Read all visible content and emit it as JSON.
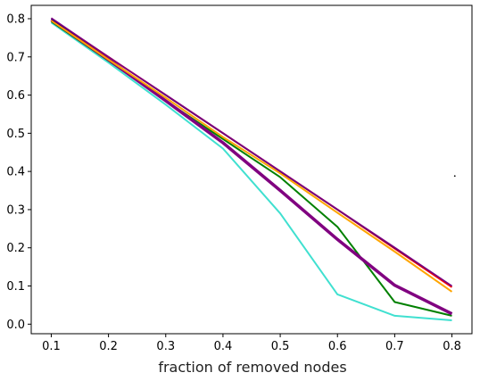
{
  "chart_data": {
    "type": "line",
    "title": "",
    "xlabel": "fraction of removed nodes",
    "ylabel": "",
    "xlim": [
      0.065,
      0.835
    ],
    "ylim": [
      -0.025,
      0.835
    ],
    "grid": false,
    "legend": "none",
    "x_ticks": [
      0.1,
      0.2,
      0.3,
      0.4,
      0.5,
      0.6,
      0.7,
      0.8
    ],
    "x_tick_labels": [
      "0.1",
      "0.2",
      "0.3",
      "0.4",
      "0.5",
      "0.6",
      "0.7",
      "0.8"
    ],
    "y_ticks": [
      0.0,
      0.1,
      0.2,
      0.3,
      0.4,
      0.5,
      0.6,
      0.7,
      0.8
    ],
    "y_tick_labels": [
      "0.0",
      "0.1",
      "0.2",
      "0.3",
      "0.4",
      "0.5",
      "0.6",
      "0.7",
      "0.8"
    ],
    "x": [
      0.1,
      0.2,
      0.3,
      0.4,
      0.5,
      0.6,
      0.7,
      0.8
    ],
    "series": [
      {
        "color": "#40E0D0",
        "width": 2,
        "values": [
          0.79,
          0.685,
          0.575,
          0.46,
          0.29,
          0.078,
          0.022,
          0.01
        ]
      },
      {
        "color": "#008000",
        "width": 2,
        "values": [
          0.793,
          0.69,
          0.585,
          0.485,
          0.385,
          0.255,
          0.058,
          0.022
        ]
      },
      {
        "color": "#800080",
        "width": 3.5,
        "values": [
          0.797,
          0.693,
          0.585,
          0.475,
          0.35,
          0.222,
          0.102,
          0.027
        ]
      },
      {
        "color": "#FFA500",
        "width": 2,
        "values": [
          0.795,
          0.693,
          0.593,
          0.49,
          0.395,
          0.292,
          0.19,
          0.085
        ]
      },
      {
        "color": "#FF0000",
        "width": 2,
        "values": [
          0.8,
          0.7,
          0.6,
          0.5,
          0.4,
          0.3,
          0.198,
          0.097
        ]
      },
      {
        "color": "#00008B",
        "width": 1.5,
        "values": [
          0.8,
          0.7,
          0.6,
          0.5,
          0.4,
          0.3,
          0.2,
          0.1
        ]
      },
      {
        "color": "#800080",
        "width": 1.5,
        "values": [
          0.802,
          0.7,
          0.601,
          0.501,
          0.401,
          0.301,
          0.201,
          0.1
        ]
      }
    ],
    "markers": [
      {
        "x": 0.805,
        "y": 0.388,
        "color": "#000000"
      }
    ]
  }
}
